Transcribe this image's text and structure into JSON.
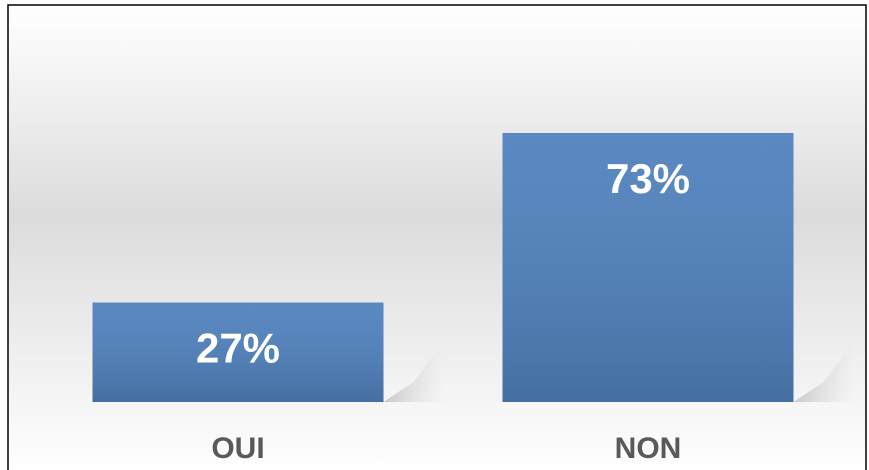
{
  "chart_data": {
    "type": "bar",
    "categories": [
      "OUI",
      "NON"
    ],
    "values": [
      27,
      73
    ],
    "value_labels": [
      "27%",
      "73%"
    ],
    "color": "#4f81bd"
  }
}
